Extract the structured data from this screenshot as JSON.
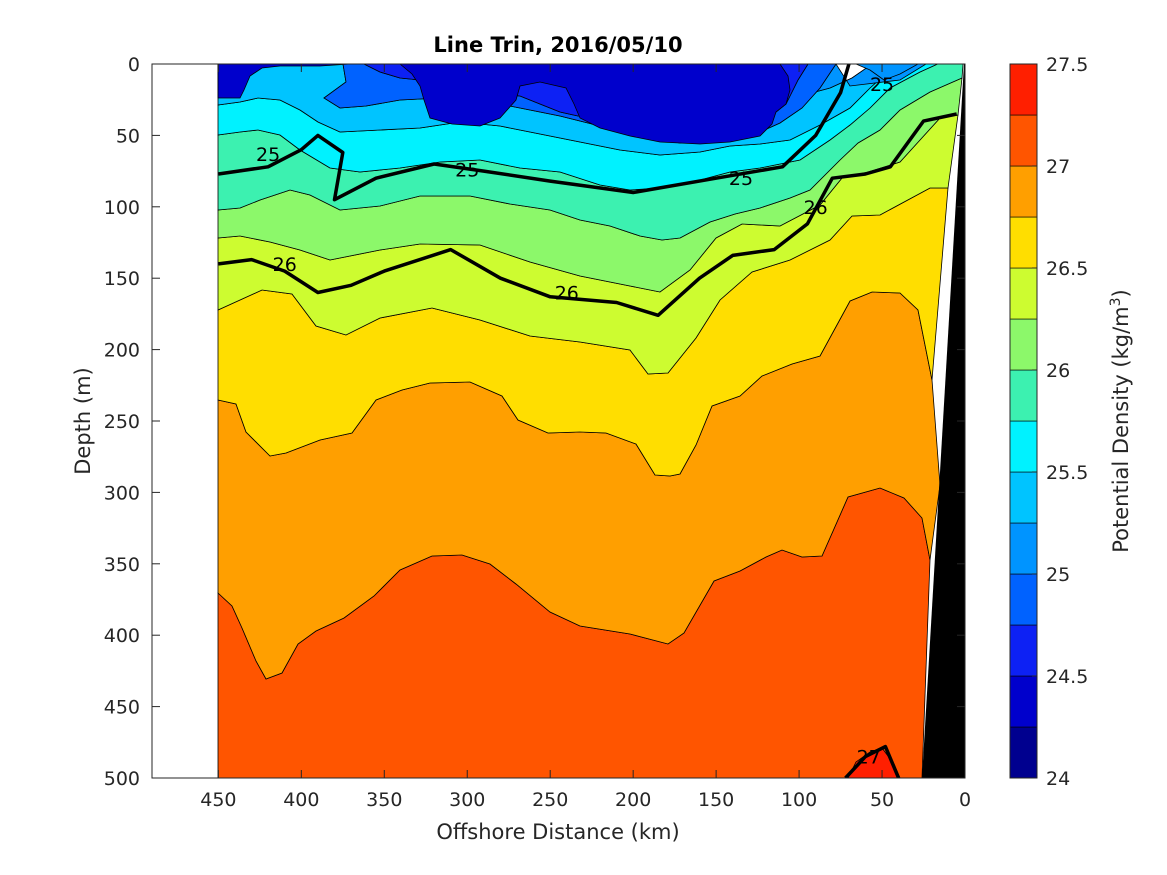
{
  "chart_data": {
    "type": "contourf",
    "title": "Line Trin, 2016/05/10",
    "xlabel": "Offshore Distance (km)",
    "ylabel": "Depth (m)",
    "xlim": [
      490,
      0
    ],
    "ylim": [
      0,
      500
    ],
    "x_direction": "reversed",
    "y_direction": "reversed",
    "x_ticks": [
      "450",
      "400",
      "350",
      "300",
      "250",
      "200",
      "150",
      "100",
      "50",
      "0"
    ],
    "y_ticks": [
      "0",
      "50",
      "100",
      "150",
      "200",
      "250",
      "300",
      "350",
      "400",
      "450",
      "500"
    ],
    "data_x_range": [
      450,
      0
    ],
    "colorbar": {
      "label_prefix": "Potential Density (kg/m",
      "label_superscript": "3",
      "label_suffix": ")",
      "limits": [
        24,
        27.5
      ],
      "tick_labels": [
        "24",
        "24.5",
        "25",
        "25.5",
        "26",
        "26.5",
        "27",
        "27.5"
      ],
      "levels": [
        24,
        24.25,
        24.5,
        24.75,
        25,
        25.25,
        25.5,
        25.75,
        26,
        26.25,
        26.5,
        26.75,
        27,
        27.25,
        27.5
      ],
      "colors": [
        "#00008f",
        "#0000cc",
        "#0d21f4",
        "#0062ff",
        "#0094ff",
        "#00c4ff",
        "#00f2ff",
        "#3cf1b0",
        "#8cf86a",
        "#cdfc30",
        "#ffde00",
        "#ff9f00",
        "#ff5500",
        "#ff1f00",
        "#c40000"
      ]
    },
    "labeled_contours": [
      {
        "level": "25",
        "points_km_m": [
          [
            450,
            77
          ],
          [
            420,
            72
          ],
          [
            400,
            60
          ],
          [
            390,
            50
          ],
          [
            375,
            62
          ],
          [
            380,
            95
          ],
          [
            355,
            80
          ],
          [
            320,
            70
          ],
          [
            290,
            75
          ],
          [
            250,
            82
          ],
          [
            200,
            90
          ],
          [
            150,
            80
          ],
          [
            110,
            72
          ],
          [
            90,
            50
          ],
          [
            75,
            20
          ],
          [
            70,
            0
          ]
        ]
      },
      {
        "level": "26",
        "points_km_m": [
          [
            450,
            140
          ],
          [
            430,
            137
          ],
          [
            410,
            145
          ],
          [
            390,
            160
          ],
          [
            370,
            155
          ],
          [
            350,
            145
          ],
          [
            310,
            130
          ],
          [
            280,
            150
          ],
          [
            250,
            163
          ],
          [
            210,
            167
          ],
          [
            185,
            176
          ],
          [
            160,
            150
          ],
          [
            140,
            134
          ],
          [
            115,
            130
          ],
          [
            95,
            112
          ],
          [
            80,
            80
          ],
          [
            60,
            77
          ],
          [
            45,
            72
          ],
          [
            25,
            40
          ],
          [
            5,
            35
          ]
        ]
      },
      {
        "level": "27",
        "points_km_m": [
          [
            72,
            500
          ],
          [
            60,
            485
          ],
          [
            48,
            478
          ],
          [
            40,
            500
          ]
        ]
      }
    ],
    "contour_labels": [
      {
        "text": "25",
        "at_km_m": [
          420,
          63
        ]
      },
      {
        "text": "25",
        "at_km_m": [
          300,
          74
        ]
      },
      {
        "text": "25",
        "at_km_m": [
          135,
          80
        ]
      },
      {
        "text": "25",
        "at_km_m": [
          50,
          14
        ]
      },
      {
        "text": "26",
        "at_km_m": [
          410,
          140
        ]
      },
      {
        "text": "26",
        "at_km_m": [
          240,
          160
        ]
      },
      {
        "text": "26",
        "at_km_m": [
          90,
          100
        ]
      },
      {
        "text": "27",
        "at_km_m": [
          58,
          485
        ]
      }
    ],
    "bottom_topography": "black wedge near shore (0–25 km)"
  }
}
